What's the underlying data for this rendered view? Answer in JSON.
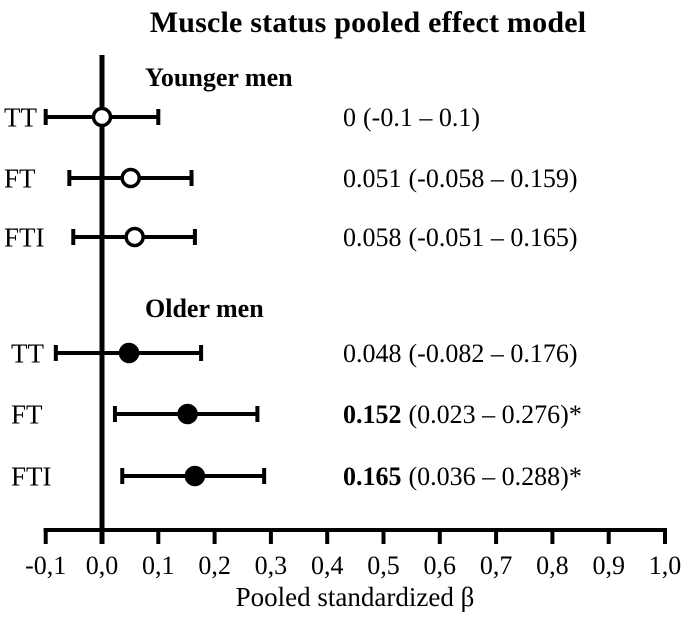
{
  "colors": {
    "foreground": "#000000",
    "background": "#ffffff"
  },
  "chart_data": {
    "type": "forest",
    "title": "Muscle status pooled effect model",
    "xlabel": "Pooled standardized β",
    "x_axis": {
      "range": [
        -0.1,
        1.0
      ],
      "tick_values": [
        -0.1,
        0.0,
        0.1,
        0.2,
        0.3,
        0.4,
        0.5,
        0.6,
        0.7,
        0.8,
        0.9,
        1.0
      ],
      "tick_labels": [
        "-0,1",
        "0,0",
        "0,1",
        "0,2",
        "0,3",
        "0,4",
        "0,5",
        "0,6",
        "0,7",
        "0,8",
        "0,9",
        "1,0"
      ],
      "reference_line_x": 0
    },
    "groups": [
      {
        "label": "Younger men",
        "marker": "open-circle",
        "rows": [
          {
            "label": "TT",
            "estimate": 0,
            "ci_low": -0.1,
            "ci_high": 0.1,
            "estimate_text": "0",
            "ci_text": "(-0.1 – 0.1)",
            "bold": false,
            "significant": false
          },
          {
            "label": "FT",
            "estimate": 0.051,
            "ci_low": -0.058,
            "ci_high": 0.159,
            "estimate_text": "0.051",
            "ci_text": "(-0.058 – 0.159)",
            "bold": false,
            "significant": false
          },
          {
            "label": "FTI",
            "estimate": 0.058,
            "ci_low": -0.051,
            "ci_high": 0.165,
            "estimate_text": "0.058",
            "ci_text": "(-0.051 – 0.165)",
            "bold": false,
            "significant": false
          }
        ]
      },
      {
        "label": "Older men",
        "marker": "filled-circle",
        "rows": [
          {
            "label": "TT",
            "estimate": 0.048,
            "ci_low": -0.082,
            "ci_high": 0.176,
            "estimate_text": "0.048",
            "ci_text": "(-0.082 – 0.176)",
            "bold": false,
            "significant": false
          },
          {
            "label": "FT",
            "estimate": 0.152,
            "ci_low": 0.023,
            "ci_high": 0.276,
            "estimate_text": "0.152",
            "ci_text": "(0.023 – 0.276)*",
            "bold": true,
            "significant": true
          },
          {
            "label": "FTI",
            "estimate": 0.165,
            "ci_low": 0.036,
            "ci_high": 0.288,
            "estimate_text": "0.165",
            "ci_text": "(0.036 – 0.288)*",
            "bold": true,
            "significant": true
          }
        ]
      }
    ]
  }
}
